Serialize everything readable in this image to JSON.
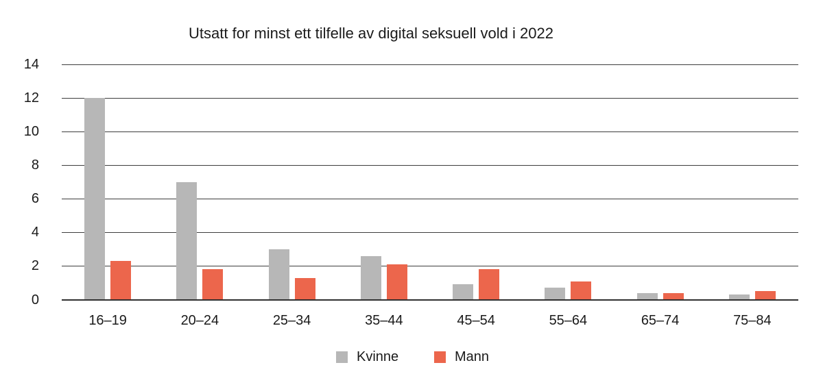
{
  "chart_data": {
    "type": "bar",
    "title": "Utsatt for minst ett tilfelle av digital seksuell vold i 2022",
    "categories": [
      "16–19",
      "20–24",
      "25–34",
      "35–44",
      "45–54",
      "55–64",
      "65–74",
      "75–84"
    ],
    "series": [
      {
        "name": "Kvinne",
        "color": "#b7b7b7",
        "values": [
          12,
          7,
          3,
          2.6,
          0.9,
          0.7,
          0.4,
          0.3
        ]
      },
      {
        "name": "Mann",
        "color": "#ec664c",
        "values": [
          2.3,
          1.8,
          1.3,
          2.1,
          1.8,
          1.1,
          0.4,
          0.5
        ]
      }
    ],
    "xlabel": "",
    "ylabel": "",
    "ylim": [
      0,
      14
    ],
    "ytick_step": 2,
    "ytick_labels": [
      "0",
      "2",
      "4",
      "6",
      "8",
      "10",
      "12",
      "14"
    ],
    "grid": "horizontal",
    "grid_color": "#3c3c3c",
    "text_color": "#1a1a1a",
    "legend_position": "bottom"
  }
}
